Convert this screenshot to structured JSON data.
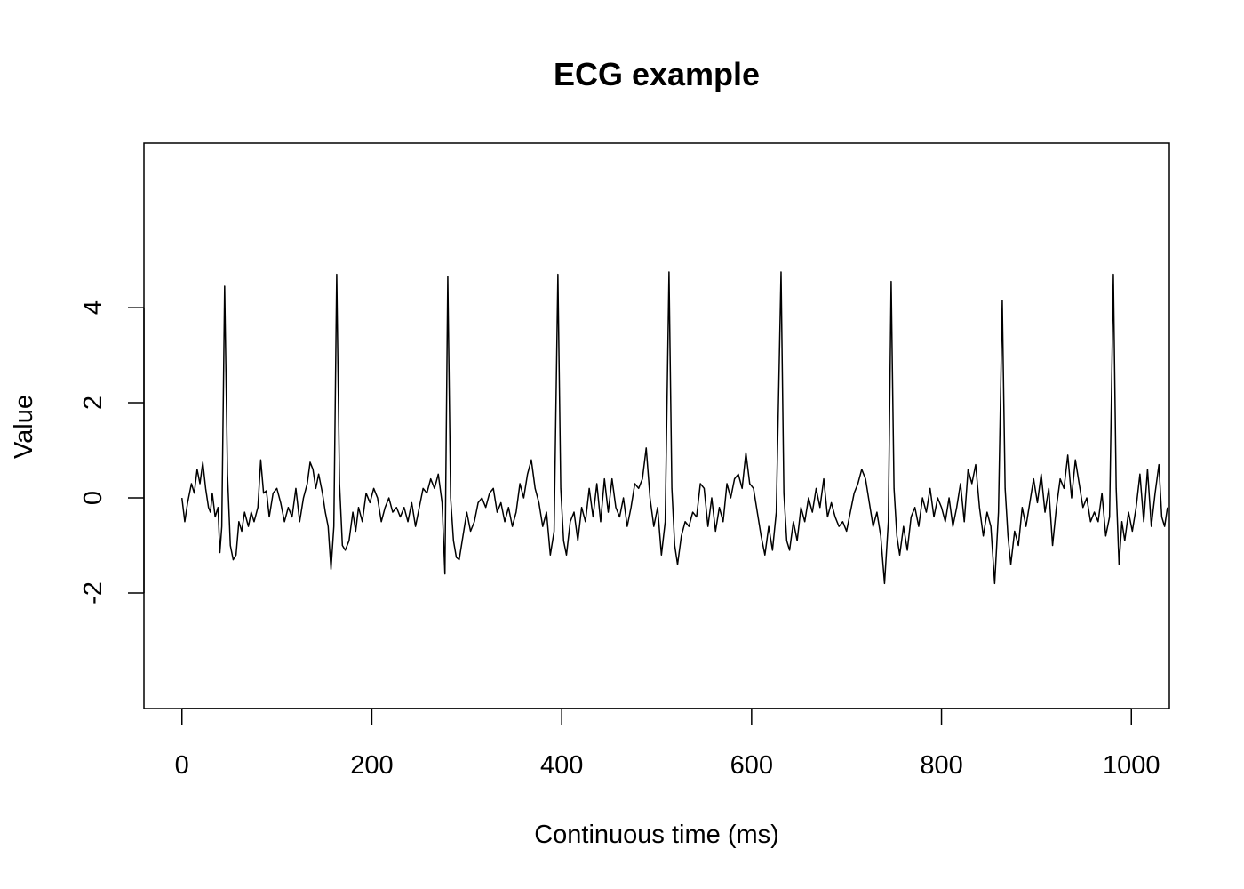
{
  "chart_data": {
    "type": "line",
    "title": "ECG example",
    "x_label": "Continuous time (ms)",
    "y_label": "Value",
    "xlim": [
      -40,
      1040
    ],
    "ylim": [
      -4.43,
      7.46
    ],
    "xticks": [
      0,
      200,
      400,
      600,
      800,
      1000
    ],
    "yticks": [
      -2,
      0,
      2,
      4
    ],
    "x": [
      0,
      3,
      6,
      10,
      13,
      16,
      19,
      22,
      25,
      28,
      30,
      32,
      35,
      38,
      40,
      42,
      45,
      48,
      51,
      54,
      57,
      60,
      63,
      66,
      70,
      73,
      76,
      80,
      83,
      86,
      89,
      92,
      96,
      100,
      104,
      108,
      112,
      116,
      120,
      124,
      128,
      132,
      135,
      138,
      141,
      144,
      148,
      151,
      154,
      157,
      160,
      163,
      166,
      169,
      172,
      176,
      180,
      183,
      186,
      190,
      194,
      198,
      202,
      206,
      210,
      214,
      218,
      222,
      226,
      230,
      234,
      238,
      242,
      246,
      250,
      254,
      258,
      262,
      266,
      270,
      274,
      277,
      280,
      283,
      286,
      289,
      292,
      296,
      300,
      304,
      308,
      312,
      316,
      320,
      324,
      328,
      332,
      336,
      340,
      344,
      348,
      352,
      356,
      360,
      364,
      368,
      372,
      376,
      380,
      384,
      388,
      392,
      396,
      399,
      402,
      405,
      409,
      413,
      417,
      421,
      425,
      429,
      433,
      437,
      441,
      445,
      449,
      453,
      457,
      461,
      465,
      469,
      473,
      477,
      481,
      485,
      489,
      493,
      497,
      501,
      505,
      509,
      513,
      516,
      519,
      522,
      526,
      530,
      534,
      538,
      542,
      546,
      550,
      554,
      558,
      562,
      566,
      570,
      574,
      578,
      582,
      586,
      590,
      594,
      598,
      602,
      606,
      610,
      614,
      618,
      622,
      626,
      631,
      634,
      637,
      640,
      644,
      648,
      652,
      656,
      660,
      664,
      668,
      672,
      676,
      680,
      684,
      688,
      692,
      696,
      700,
      704,
      708,
      712,
      716,
      720,
      724,
      728,
      732,
      736,
      740,
      744,
      747,
      750,
      753,
      756,
      760,
      764,
      768,
      772,
      776,
      780,
      784,
      788,
      792,
      796,
      800,
      804,
      808,
      812,
      816,
      820,
      824,
      828,
      832,
      836,
      840,
      844,
      848,
      852,
      856,
      860,
      864,
      867,
      870,
      873,
      877,
      881,
      885,
      889,
      893,
      897,
      901,
      905,
      909,
      913,
      917,
      921,
      925,
      929,
      933,
      937,
      941,
      945,
      949,
      953,
      957,
      961,
      965,
      969,
      973,
      977,
      981,
      984,
      987,
      990,
      993,
      997,
      1001,
      1005,
      1009,
      1013,
      1017,
      1021,
      1025,
      1029,
      1032,
      1035,
      1038
    ],
    "series": [
      {
        "name": "ECG",
        "color": "#000000",
        "values": [
          0,
          -0.5,
          -0.1,
          0.3,
          0.1,
          0.6,
          0.3,
          0.75,
          0.2,
          -0.2,
          -0.3,
          0.1,
          -0.4,
          -0.2,
          -1.15,
          -0.6,
          4.45,
          0.5,
          -1.0,
          -1.3,
          -1.2,
          -0.5,
          -0.7,
          -0.3,
          -0.6,
          -0.3,
          -0.5,
          -0.2,
          0.8,
          0.1,
          0.15,
          -0.4,
          0.1,
          0.2,
          -0.1,
          -0.5,
          -0.2,
          -0.4,
          0.2,
          -0.5,
          0.0,
          0.3,
          0.75,
          0.6,
          0.2,
          0.5,
          0.1,
          -0.3,
          -0.6,
          -1.5,
          -0.6,
          4.7,
          0.3,
          -1.0,
          -1.1,
          -0.9,
          -0.3,
          -0.7,
          -0.2,
          -0.5,
          0.1,
          -0.1,
          0.2,
          0.0,
          -0.5,
          -0.2,
          0.0,
          -0.3,
          -0.2,
          -0.4,
          -0.2,
          -0.5,
          -0.1,
          -0.6,
          -0.2,
          0.2,
          0.1,
          0.4,
          0.2,
          0.5,
          -0.1,
          -1.6,
          4.65,
          0.0,
          -0.9,
          -1.25,
          -1.3,
          -0.8,
          -0.3,
          -0.7,
          -0.5,
          -0.1,
          0.0,
          -0.2,
          0.1,
          0.2,
          -0.3,
          -0.1,
          -0.5,
          -0.2,
          -0.6,
          -0.3,
          0.3,
          0.0,
          0.5,
          0.8,
          0.2,
          -0.1,
          -0.6,
          -0.3,
          -1.2,
          -0.7,
          4.7,
          0.2,
          -0.9,
          -1.2,
          -0.5,
          -0.3,
          -0.9,
          -0.2,
          -0.5,
          0.2,
          -0.4,
          0.3,
          -0.5,
          0.4,
          -0.3,
          0.4,
          -0.2,
          -0.4,
          0.0,
          -0.6,
          -0.2,
          0.3,
          0.2,
          0.4,
          1.05,
          0.0,
          -0.6,
          -0.2,
          -1.2,
          -0.5,
          4.75,
          0.2,
          -1.0,
          -1.4,
          -0.8,
          -0.5,
          -0.6,
          -0.3,
          -0.4,
          0.3,
          0.2,
          -0.6,
          0.0,
          -0.7,
          -0.2,
          -0.5,
          0.3,
          0.0,
          0.4,
          0.5,
          0.2,
          0.95,
          0.3,
          0.2,
          -0.3,
          -0.8,
          -1.2,
          -0.6,
          -1.1,
          -0.3,
          4.75,
          0.1,
          -0.9,
          -1.1,
          -0.5,
          -0.9,
          -0.2,
          -0.5,
          0.0,
          -0.3,
          0.2,
          -0.2,
          0.4,
          -0.4,
          -0.1,
          -0.4,
          -0.6,
          -0.5,
          -0.7,
          -0.3,
          0.1,
          0.3,
          0.6,
          0.4,
          -0.1,
          -0.6,
          -0.3,
          -0.8,
          -1.8,
          -0.5,
          4.55,
          0.2,
          -0.8,
          -1.2,
          -0.6,
          -1.1,
          -0.4,
          -0.2,
          -0.6,
          0.0,
          -0.3,
          0.2,
          -0.4,
          0.0,
          -0.2,
          -0.5,
          0.0,
          -0.6,
          -0.2,
          0.3,
          -0.5,
          0.6,
          0.3,
          0.7,
          -0.2,
          -0.8,
          -0.3,
          -0.6,
          -1.8,
          -0.3,
          4.15,
          0.2,
          -0.8,
          -1.4,
          -0.7,
          -1.0,
          -0.2,
          -0.6,
          -0.1,
          0.4,
          -0.1,
          0.5,
          -0.3,
          0.2,
          -1.0,
          -0.2,
          0.4,
          0.2,
          0.9,
          0.0,
          0.8,
          0.3,
          -0.2,
          0.0,
          -0.5,
          -0.3,
          -0.5,
          0.1,
          -0.8,
          -0.4,
          4.7,
          0.2,
          -1.4,
          -0.5,
          -0.9,
          -0.3,
          -0.7,
          -0.2,
          0.5,
          -0.5,
          0.6,
          -0.6,
          0.1,
          0.7,
          -0.4,
          -0.6,
          -0.2
        ]
      }
    ]
  }
}
